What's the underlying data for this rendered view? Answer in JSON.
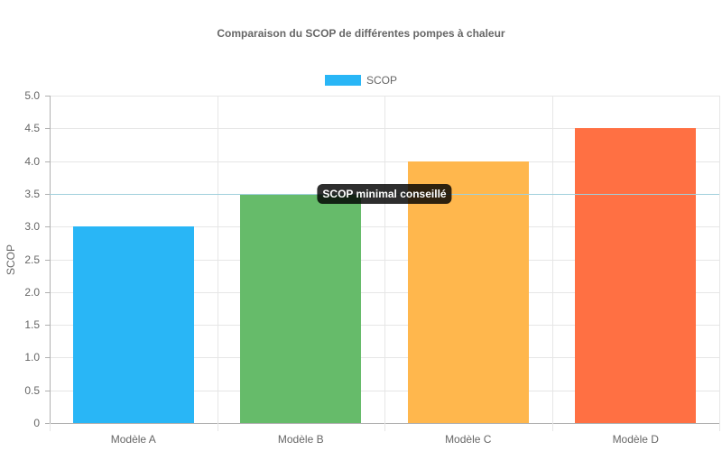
{
  "chart_data": {
    "type": "bar",
    "title": "Comparaison du SCOP de différentes pompes à chaleur",
    "categories": [
      "Modèle A",
      "Modèle B",
      "Modèle C",
      "Modèle D"
    ],
    "series": [
      {
        "name": "SCOP",
        "values": [
          3.0,
          3.5,
          4.0,
          4.5
        ]
      }
    ],
    "bar_colors": [
      "#29b6f6",
      "#66bb6a",
      "#ffb74d",
      "#ff7043"
    ],
    "legend": {
      "position": "top",
      "entries": [
        {
          "label": "SCOP",
          "color": "#29b6f6"
        }
      ]
    },
    "xlabel": "",
    "ylabel": "SCOP",
    "ylim": [
      0,
      5
    ],
    "yticks": [
      "0",
      "0.5",
      "1.0",
      "1.5",
      "2.0",
      "2.5",
      "3.0",
      "3.5",
      "4.0",
      "4.5",
      "5.0"
    ],
    "grid": true,
    "annotations": [
      {
        "type": "line",
        "y": 3.5,
        "label": "SCOP minimal conseillé",
        "color": "#a0d0dc"
      }
    ]
  },
  "title": "Comparaison du SCOP de différentes pompes à chaleur",
  "legend": {
    "label": "SCOP",
    "color": "#29b6f6"
  },
  "yaxis": {
    "title": "SCOP"
  },
  "annotation": {
    "label": "SCOP minimal conseillé"
  }
}
